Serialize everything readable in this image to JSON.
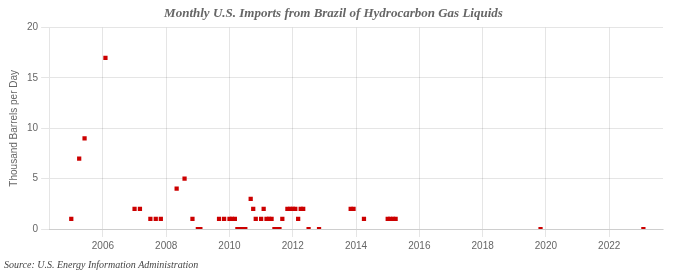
{
  "chart_data": {
    "type": "scatter",
    "title": "Monthly U.S. Imports from Brazil of Hydrocarbon Gas Liquids",
    "ylabel": "Thousand Barrels per Day",
    "source": "Source: U.S. Energy Information Administration",
    "color": "#cc0000",
    "marker": "square",
    "grid": true,
    "xlim": [
      2004.3,
      2023.7
    ],
    "ylim": [
      0,
      20
    ],
    "xticks": [
      2006,
      2008,
      2010,
      2012,
      2014,
      2016,
      2018,
      2020,
      2022
    ],
    "yticks": [
      0,
      5,
      10,
      15,
      20
    ],
    "x": [
      2005.0,
      2005.25,
      2005.42,
      2006.08,
      2007.0,
      2007.17,
      2007.5,
      2007.67,
      2007.83,
      2008.33,
      2008.58,
      2008.83,
      2009.0,
      2009.08,
      2009.67,
      2009.83,
      2010.0,
      2010.08,
      2010.17,
      2010.25,
      2010.33,
      2010.42,
      2010.5,
      2010.67,
      2010.75,
      2010.83,
      2011.0,
      2011.08,
      2011.17,
      2011.25,
      2011.33,
      2011.42,
      2011.5,
      2011.58,
      2011.67,
      2011.83,
      2011.92,
      2012.0,
      2012.08,
      2012.17,
      2012.25,
      2012.33,
      2012.5,
      2012.83,
      2013.83,
      2013.92,
      2014.25,
      2015.0,
      2015.08,
      2015.17,
      2015.25,
      2019.83,
      2023.08
    ],
    "values": [
      1.0,
      7.0,
      9.0,
      17.0,
      2.0,
      2.0,
      1.0,
      1.0,
      1.0,
      4.0,
      5.0,
      1.0,
      0.0,
      0.0,
      1.0,
      1.0,
      1.0,
      1.0,
      1.0,
      0.0,
      0.0,
      0.0,
      0.0,
      3.0,
      2.0,
      1.0,
      1.0,
      2.0,
      1.0,
      1.0,
      1.0,
      0.0,
      0.0,
      0.0,
      1.0,
      2.0,
      2.0,
      2.0,
      2.0,
      1.0,
      2.0,
      2.0,
      0.0,
      0.0,
      2.0,
      2.0,
      1.0,
      1.0,
      1.0,
      1.0,
      1.0,
      0.0,
      0.0
    ]
  }
}
